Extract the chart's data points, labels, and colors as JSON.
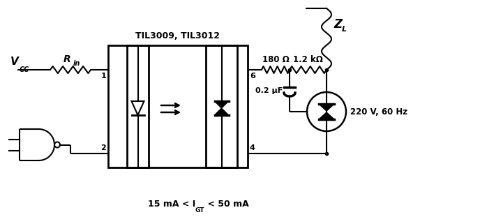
{
  "bg_color": "#ffffff",
  "line_color": "#000000",
  "title_text": "TIL3009, TIL3012",
  "label_vcc": "V",
  "label_vcc_sub": "CC",
  "label_rin": "R",
  "label_rin_sub": "in",
  "label_180": "180 Ω",
  "label_12k": "1.2 kΩ",
  "label_02uf": "0.2 μF",
  "label_220": "220 V, 60 Hz",
  "label_zl": "Z",
  "label_zl_sub": "L",
  "label_1": "1",
  "label_2": "2",
  "label_4": "4",
  "label_6": "6",
  "bottom_label": "15 mA < I",
  "bottom_sub": "GT",
  "bottom_label2": " < 50 mA"
}
